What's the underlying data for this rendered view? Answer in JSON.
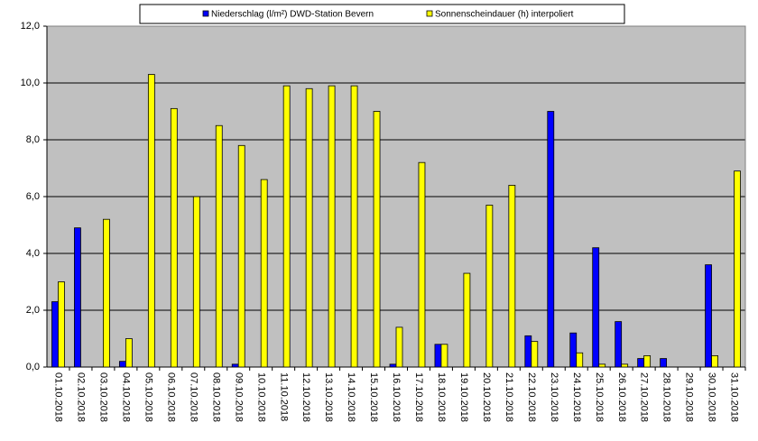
{
  "chart_data": {
    "type": "bar",
    "legend": "top",
    "categories": [
      "01.10.2018",
      "02.10.2018",
      "03.10.2018",
      "04.10.2018",
      "05.10.2018",
      "06.10.2018",
      "07.10.2018",
      "08.10.2018",
      "09.10.2018",
      "10.10.2018",
      "11.10.2018",
      "12.10.2018",
      "13.10.2018",
      "14.10.2018",
      "15.10.2018",
      "16.10.2018",
      "17.10.2018",
      "18.10.2018",
      "19.10.2018",
      "20.10.2018",
      "21.10.2018",
      "22.10.2018",
      "23.10.2018",
      "24.10.2018",
      "25.10.2018",
      "26.10.2018",
      "27.10.2018",
      "28.10.2018",
      "29.10.2018",
      "30.10.2018",
      "31.10.2018"
    ],
    "series": [
      {
        "name": "Niederschlag (l/m²) DWD-Station Bevern",
        "color": "#0000ff",
        "values": [
          2.3,
          4.9,
          0,
          0.2,
          0,
          0,
          0,
          0,
          0.1,
          0,
          0,
          0,
          0,
          0,
          0,
          0.1,
          0,
          0.8,
          0,
          0,
          0,
          1.1,
          9.0,
          1.2,
          4.2,
          1.6,
          0.3,
          0.3,
          0,
          3.6,
          0
        ]
      },
      {
        "name": "Sonnenscheindauer (h) interpoliert",
        "color": "#ffff00",
        "values": [
          3.0,
          0,
          5.2,
          1.0,
          10.3,
          9.1,
          6.0,
          8.5,
          7.8,
          6.6,
          9.9,
          9.8,
          9.9,
          9.9,
          9.0,
          1.4,
          7.2,
          0.8,
          3.3,
          5.7,
          6.4,
          0.9,
          0,
          0.5,
          0.1,
          0.1,
          0.4,
          0,
          0,
          0.4,
          6.9
        ]
      }
    ],
    "ylim": [
      0,
      12
    ],
    "yticks": [
      {
        "value": 0,
        "label": "0,0"
      },
      {
        "value": 2,
        "label": "2,0"
      },
      {
        "value": 4,
        "label": "4,0"
      },
      {
        "value": 6,
        "label": "6,0"
      },
      {
        "value": 8,
        "label": "8,0"
      },
      {
        "value": 10,
        "label": "10,0"
      },
      {
        "value": 12,
        "label": "12,0"
      }
    ],
    "grid": true
  }
}
